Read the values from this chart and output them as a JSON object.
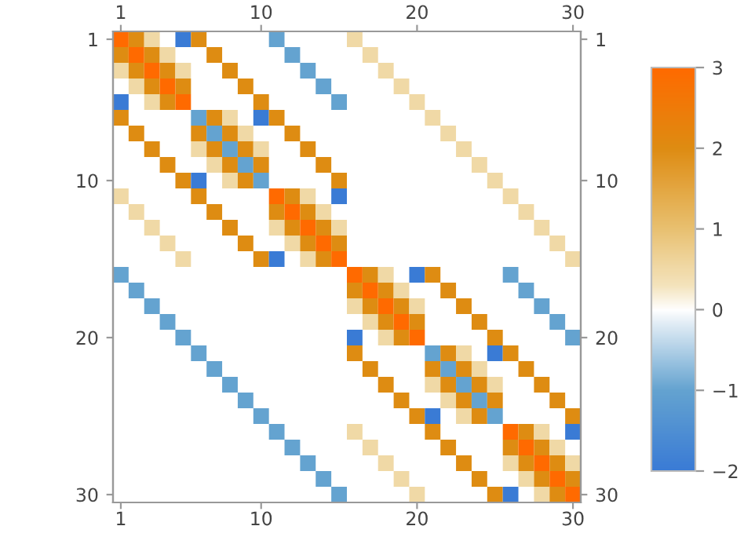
{
  "chart_data": {
    "type": "heatmap",
    "categories": [
      "1",
      null,
      null,
      null,
      null,
      null,
      null,
      null,
      null,
      "10",
      null,
      null,
      null,
      null,
      null,
      null,
      null,
      null,
      null,
      "20",
      null,
      null,
      null,
      null,
      null,
      null,
      null,
      null,
      null,
      "30"
    ],
    "y_categories": [
      "1",
      null,
      null,
      null,
      null,
      null,
      null,
      null,
      null,
      "10",
      null,
      null,
      null,
      null,
      null,
      null,
      null,
      null,
      null,
      "20",
      null,
      null,
      null,
      null,
      null,
      null,
      null,
      null,
      null,
      "30"
    ],
    "y2_categories": [
      "1",
      null,
      null,
      null,
      null,
      null,
      null,
      null,
      null,
      "10",
      null,
      null,
      null,
      null,
      null,
      null,
      null,
      null,
      null,
      "20",
      null,
      null,
      null,
      null,
      null,
      null,
      null,
      null,
      null,
      "30"
    ],
    "cells": [
      [
        3,
        2,
        0.5,
        null,
        -2,
        2,
        null,
        null,
        null,
        null,
        -1,
        null,
        null,
        null,
        null,
        0.5,
        null,
        null,
        null,
        null,
        null,
        null,
        null,
        null,
        null,
        null,
        null,
        null,
        null,
        null
      ],
      [
        2,
        3,
        2,
        0.5,
        null,
        null,
        2,
        null,
        null,
        null,
        null,
        -1,
        null,
        null,
        null,
        null,
        0.5,
        null,
        null,
        null,
        null,
        null,
        null,
        null,
        null,
        null,
        null,
        null,
        null,
        null
      ],
      [
        0.5,
        2,
        3,
        2,
        0.5,
        null,
        null,
        2,
        null,
        null,
        null,
        null,
        -1,
        null,
        null,
        null,
        null,
        0.5,
        null,
        null,
        null,
        null,
        null,
        null,
        null,
        null,
        null,
        null,
        null,
        null
      ],
      [
        null,
        0.5,
        2,
        3,
        2,
        null,
        null,
        null,
        2,
        null,
        null,
        null,
        null,
        -1,
        null,
        null,
        null,
        null,
        0.5,
        null,
        null,
        null,
        null,
        null,
        null,
        null,
        null,
        null,
        null,
        null
      ],
      [
        -2,
        null,
        0.5,
        2,
        3,
        null,
        null,
        null,
        null,
        2,
        null,
        null,
        null,
        null,
        -1,
        null,
        null,
        null,
        null,
        0.5,
        null,
        null,
        null,
        null,
        null,
        null,
        null,
        null,
        null,
        null
      ],
      [
        2,
        null,
        null,
        null,
        null,
        -1,
        2,
        0.5,
        null,
        -2,
        2,
        null,
        null,
        null,
        null,
        null,
        null,
        null,
        null,
        null,
        0.5,
        null,
        null,
        null,
        null,
        null,
        null,
        null,
        null,
        null
      ],
      [
        null,
        2,
        null,
        null,
        null,
        2,
        -1,
        2,
        0.5,
        null,
        null,
        2,
        null,
        null,
        null,
        null,
        null,
        null,
        null,
        null,
        null,
        0.5,
        null,
        null,
        null,
        null,
        null,
        null,
        null,
        null
      ],
      [
        null,
        null,
        2,
        null,
        null,
        0.5,
        2,
        -1,
        2,
        0.5,
        null,
        null,
        2,
        null,
        null,
        null,
        null,
        null,
        null,
        null,
        null,
        null,
        0.5,
        null,
        null,
        null,
        null,
        null,
        null,
        null
      ],
      [
        null,
        null,
        null,
        2,
        null,
        null,
        0.5,
        2,
        -1,
        2,
        null,
        null,
        null,
        2,
        null,
        null,
        null,
        null,
        null,
        null,
        null,
        null,
        null,
        0.5,
        null,
        null,
        null,
        null,
        null,
        null
      ],
      [
        null,
        null,
        null,
        null,
        2,
        -2,
        null,
        0.5,
        2,
        -1,
        null,
        null,
        null,
        null,
        2,
        null,
        null,
        null,
        null,
        null,
        null,
        null,
        null,
        null,
        0.5,
        null,
        null,
        null,
        null,
        null
      ],
      [
        0.5,
        null,
        null,
        null,
        null,
        2,
        null,
        null,
        null,
        null,
        3,
        2,
        0.5,
        null,
        -2,
        null,
        null,
        null,
        null,
        null,
        null,
        null,
        null,
        null,
        null,
        0.5,
        null,
        null,
        null,
        null
      ],
      [
        null,
        0.5,
        null,
        null,
        null,
        null,
        2,
        null,
        null,
        null,
        2,
        3,
        2,
        0.5,
        null,
        null,
        null,
        null,
        null,
        null,
        null,
        null,
        null,
        null,
        null,
        null,
        0.5,
        null,
        null,
        null
      ],
      [
        null,
        null,
        0.5,
        null,
        null,
        null,
        null,
        2,
        null,
        null,
        0.5,
        2,
        3,
        2,
        0.5,
        null,
        null,
        null,
        null,
        null,
        null,
        null,
        null,
        null,
        null,
        null,
        null,
        0.5,
        null,
        null
      ],
      [
        null,
        null,
        null,
        0.5,
        null,
        null,
        null,
        null,
        2,
        null,
        null,
        0.5,
        2,
        3,
        2,
        null,
        null,
        null,
        null,
        null,
        null,
        null,
        null,
        null,
        null,
        null,
        null,
        null,
        0.5,
        null
      ],
      [
        null,
        null,
        null,
        null,
        0.5,
        null,
        null,
        null,
        null,
        2,
        -2,
        null,
        0.5,
        2,
        3,
        null,
        null,
        null,
        null,
        null,
        null,
        null,
        null,
        null,
        null,
        null,
        null,
        null,
        null,
        0.5
      ],
      [
        -1,
        null,
        null,
        null,
        null,
        null,
        null,
        null,
        null,
        null,
        null,
        null,
        null,
        null,
        null,
        3,
        2,
        0.5,
        null,
        -2,
        2,
        null,
        null,
        null,
        null,
        -1,
        null,
        null,
        null,
        null
      ],
      [
        null,
        -1,
        null,
        null,
        null,
        null,
        null,
        null,
        null,
        null,
        null,
        null,
        null,
        null,
        null,
        2,
        3,
        2,
        0.5,
        null,
        null,
        2,
        null,
        null,
        null,
        null,
        -1,
        null,
        null,
        null
      ],
      [
        null,
        null,
        -1,
        null,
        null,
        null,
        null,
        null,
        null,
        null,
        null,
        null,
        null,
        null,
        null,
        0.5,
        2,
        3,
        2,
        0.5,
        null,
        null,
        2,
        null,
        null,
        null,
        null,
        -1,
        null,
        null
      ],
      [
        null,
        null,
        null,
        -1,
        null,
        null,
        null,
        null,
        null,
        null,
        null,
        null,
        null,
        null,
        null,
        null,
        0.5,
        2,
        3,
        2,
        null,
        null,
        null,
        2,
        null,
        null,
        null,
        null,
        -1,
        null
      ],
      [
        null,
        null,
        null,
        null,
        -1,
        null,
        null,
        null,
        null,
        null,
        null,
        null,
        null,
        null,
        null,
        -2,
        null,
        0.5,
        2,
        3,
        null,
        null,
        null,
        null,
        2,
        null,
        null,
        null,
        null,
        -1
      ],
      [
        null,
        null,
        null,
        null,
        null,
        -1,
        null,
        null,
        null,
        null,
        null,
        null,
        null,
        null,
        null,
        2,
        null,
        null,
        null,
        null,
        -1,
        2,
        0.5,
        null,
        -2,
        2,
        null,
        null,
        null,
        null
      ],
      [
        null,
        null,
        null,
        null,
        null,
        null,
        -1,
        null,
        null,
        null,
        null,
        null,
        null,
        null,
        null,
        null,
        2,
        null,
        null,
        null,
        2,
        -1,
        2,
        0.5,
        null,
        null,
        2,
        null,
        null,
        null
      ],
      [
        null,
        null,
        null,
        null,
        null,
        null,
        null,
        -1,
        null,
        null,
        null,
        null,
        null,
        null,
        null,
        null,
        null,
        2,
        null,
        null,
        0.5,
        2,
        -1,
        2,
        0.5,
        null,
        null,
        2,
        null,
        null
      ],
      [
        null,
        null,
        null,
        null,
        null,
        null,
        null,
        null,
        -1,
        null,
        null,
        null,
        null,
        null,
        null,
        null,
        null,
        null,
        2,
        null,
        null,
        0.5,
        2,
        -1,
        2,
        null,
        null,
        null,
        2,
        null
      ],
      [
        null,
        null,
        null,
        null,
        null,
        null,
        null,
        null,
        null,
        -1,
        null,
        null,
        null,
        null,
        null,
        null,
        null,
        null,
        null,
        2,
        -2,
        null,
        0.5,
        2,
        -1,
        null,
        null,
        null,
        null,
        2
      ],
      [
        null,
        null,
        null,
        null,
        null,
        null,
        null,
        null,
        null,
        null,
        -1,
        null,
        null,
        null,
        null,
        0.5,
        null,
        null,
        null,
        null,
        2,
        null,
        null,
        null,
        null,
        3,
        2,
        0.5,
        null,
        -2
      ],
      [
        null,
        null,
        null,
        null,
        null,
        null,
        null,
        null,
        null,
        null,
        null,
        -1,
        null,
        null,
        null,
        null,
        0.5,
        null,
        null,
        null,
        null,
        2,
        null,
        null,
        null,
        2,
        3,
        2,
        0.5,
        null
      ],
      [
        null,
        null,
        null,
        null,
        null,
        null,
        null,
        null,
        null,
        null,
        null,
        null,
        -1,
        null,
        null,
        null,
        null,
        0.5,
        null,
        null,
        null,
        null,
        2,
        null,
        null,
        0.5,
        2,
        3,
        2,
        0.5
      ],
      [
        null,
        null,
        null,
        null,
        null,
        null,
        null,
        null,
        null,
        null,
        null,
        null,
        null,
        -1,
        null,
        null,
        null,
        null,
        0.5,
        null,
        null,
        null,
        null,
        2,
        null,
        null,
        0.5,
        2,
        3,
        2
      ],
      [
        null,
        null,
        null,
        null,
        null,
        null,
        null,
        null,
        null,
        null,
        null,
        null,
        null,
        null,
        -1,
        null,
        null,
        null,
        null,
        0.5,
        null,
        null,
        null,
        null,
        2,
        -2,
        null,
        0.5,
        2,
        3
      ]
    ],
    "clim": [
      -2,
      3
    ],
    "cticks": [
      -2,
      -1,
      0,
      1,
      2,
      3
    ]
  }
}
